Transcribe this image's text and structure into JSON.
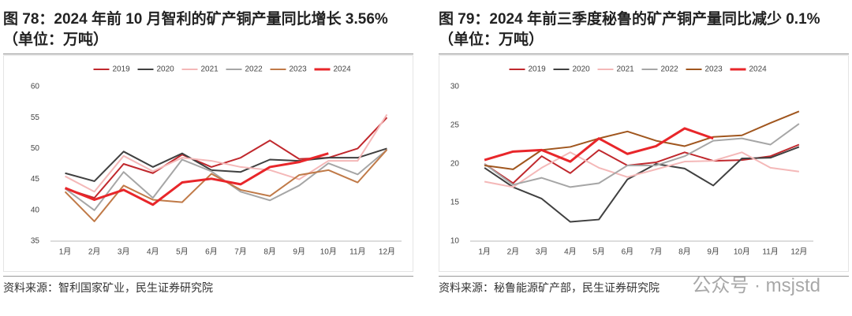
{
  "chart_data": [
    {
      "type": "line",
      "title": "图 78：2024 年前 10 月智利的矿产铜产量同比增长 3.56%（单位：万吨）",
      "source": "资料来源：智利国家矿业，民生证券研究院",
      "categories": [
        "1月",
        "2月",
        "3月",
        "4月",
        "5月",
        "6月",
        "7月",
        "8月",
        "9月",
        "10月",
        "11月",
        "12月"
      ],
      "ylim": [
        35,
        60
      ],
      "yticks": [
        35,
        40,
        45,
        50,
        55,
        60
      ],
      "legend": "top",
      "series": [
        {
          "name": "2019",
          "color": "#c0282d",
          "values": [
            43.5,
            42,
            47.5,
            46,
            49,
            47,
            48.5,
            51.3,
            48.3,
            48.5,
            50,
            55
          ]
        },
        {
          "name": "2020",
          "color": "#404040",
          "values": [
            46,
            44.7,
            49.5,
            47,
            49.2,
            46.5,
            46.2,
            48.2,
            48,
            48.5,
            48.5,
            50
          ]
        },
        {
          "name": "2021",
          "color": "#f4b8b8",
          "values": [
            45.5,
            43,
            48.8,
            46.3,
            48.5,
            48,
            47,
            46.5,
            45,
            48,
            48,
            55.5
          ]
        },
        {
          "name": "2022",
          "color": "#a6a6a6",
          "values": [
            43.5,
            40,
            46.2,
            42,
            48.2,
            46.3,
            43,
            41.6,
            44,
            47.6,
            45.8,
            49.8
          ]
        },
        {
          "name": "2023",
          "color": "#c07a48",
          "values": [
            43,
            38.2,
            44,
            41.7,
            41.3,
            45.9,
            43.3,
            42.3,
            45.7,
            46.5,
            44.5,
            49.8
          ]
        },
        {
          "name": "2024",
          "color": "#e8262a",
          "values": [
            43.6,
            41.7,
            43.3,
            40.9,
            44.5,
            45.1,
            44.2,
            47,
            47.8,
            49.2,
            null,
            null
          ]
        }
      ]
    },
    {
      "type": "line",
      "title": "图 79：2024 年前三季度秘鲁的矿产铜产量同比减少 0.1%（单位：万吨）",
      "source": "资料来源：秘鲁能源矿产部，民生证券研究院",
      "categories": [
        "1月",
        "2月",
        "3月",
        "4月",
        "5月",
        "6月",
        "7月",
        "8月",
        "9月",
        "10月",
        "11月",
        "12月"
      ],
      "ylim": [
        10,
        30
      ],
      "yticks": [
        10,
        15,
        20,
        25,
        30
      ],
      "legend": "top",
      "series": [
        {
          "name": "2019",
          "color": "#c0282d",
          "values": [
            20,
            17.5,
            21,
            18.8,
            21.8,
            19.8,
            20.2,
            21.5,
            20.4,
            20.5,
            21,
            22.5
          ]
        },
        {
          "name": "2020",
          "color": "#404040",
          "values": [
            19.5,
            17,
            15.5,
            12.5,
            12.8,
            18,
            20,
            19.4,
            17.2,
            20.7,
            20.8,
            22.2
          ]
        },
        {
          "name": "2021",
          "color": "#f4b8b8",
          "values": [
            17.7,
            17,
            19.5,
            21.5,
            19.5,
            18.3,
            19.3,
            20.3,
            20.4,
            21.5,
            19.5,
            19
          ]
        },
        {
          "name": "2022",
          "color": "#a6a6a6",
          "values": [
            20,
            17.3,
            18.2,
            17,
            17.5,
            19.8,
            19.8,
            21,
            23,
            23.3,
            22.5,
            25.2
          ]
        },
        {
          "name": "2023",
          "color": "#a0561e",
          "values": [
            19.8,
            19.3,
            21.8,
            22.2,
            23.3,
            24.2,
            23,
            22.3,
            23.5,
            23.7,
            25.3,
            26.8
          ]
        },
        {
          "name": "2024",
          "color": "#e8262a",
          "values": [
            20.5,
            21.6,
            21.8,
            20.3,
            23.3,
            21.3,
            22.3,
            24.6,
            23.3,
            null,
            null,
            null
          ]
        }
      ]
    }
  ],
  "watermark": "公众号 · msjstd"
}
